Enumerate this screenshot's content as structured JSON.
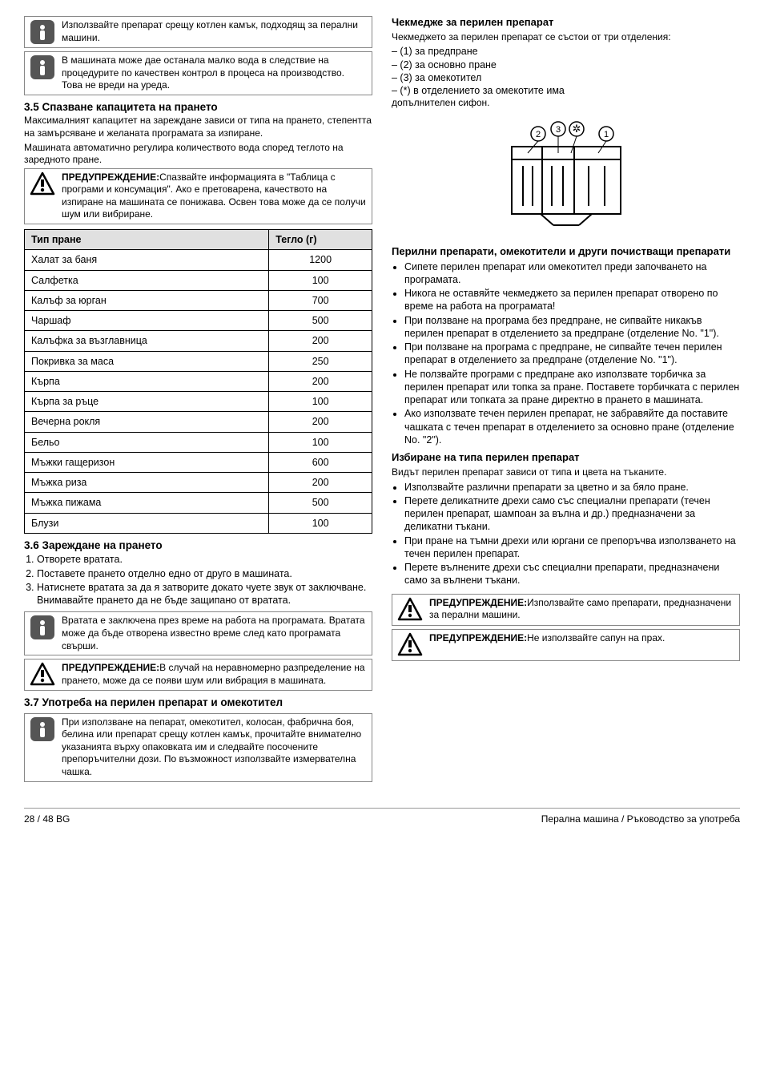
{
  "left": {
    "info1": "Използвайте препарат срещу котлен камък, подходящ за перални машини.",
    "info2": "В машината може дае останала малко вода в следствие на процедурите по качествен контрол в процеса на производство. Това не вреди на уреда.",
    "sec35_title": "3.5 Спазване капацитета на прането",
    "sec35_p1": "Максималният капацитет на зареждане зависи от типа на прането, степентта на замърсяване и желаната програмата за изпиране.",
    "sec35_p2": "Машината автоматично регулира количеството вода според теглото на заредното пране.",
    "warn35_b": "ПРЕДУПРЕЖДЕНИЕ:",
    "warn35": "Спазвайте информацията в \"Таблица с програми и консумация\". Ако е претоварена, качеството на изпиране на машината се понижава. Освен това може да се получи шум или вибриране.",
    "table": {
      "h1": "Тип пране",
      "h2": "Тегло (г)",
      "rows": [
        {
          "t": "Халат за баня",
          "w": "1200"
        },
        {
          "t": "Салфетка",
          "w": "100"
        },
        {
          "t": "Калъф за юрган",
          "w": "700"
        },
        {
          "t": "Чаршаф",
          "w": "500"
        },
        {
          "t": "Калъфка за възглавница",
          "w": "200"
        },
        {
          "t": "Покривка за маса",
          "w": "250"
        },
        {
          "t": "Кърпа",
          "w": "200"
        },
        {
          "t": "Кърпа за ръце",
          "w": "100"
        },
        {
          "t": "Вечерна рокля",
          "w": "200"
        },
        {
          "t": "Бельо",
          "w": "100"
        },
        {
          "t": "Мъжки гащеризон",
          "w": "600"
        },
        {
          "t": "Мъжка риза",
          "w": "200"
        },
        {
          "t": "Мъжка пижама",
          "w": "500"
        },
        {
          "t": "Блузи",
          "w": "100"
        }
      ]
    },
    "sec36_title": "3.6 Зареждане на прането",
    "steps": [
      "Отворете вратата.",
      "Поставете прането отделно едно от друго в машината.",
      "Натиснете вратата за да я затворите докато чуете звук от заключване. Внимавайте прането да не бъде защипано от вратата."
    ],
    "info36": "Вратата е заключена през време на работа на програмата. Вратата може да бъде отворена известно време след като програмата свърши.",
    "warn36_b": "ПРЕДУПРЕЖДЕНИЕ:",
    "warn36": "В случай на неравномерно разпределение на прането, може да се появи шум или вибрация в машината.",
    "sec37_title": "3.7 Употреба на перилен препарат и омекотител",
    "info37": "При използване на пепарат, омекотител, колосан, фабрична боя, белина или препарат срещу котлен камък, прочитайте внимателно указанията върху опаковката им и следвайте посочените препоръчителни дози. По възможност използвайте измервателна чашка."
  },
  "right": {
    "drawer_title": "Чекмедже за перилен препарат",
    "drawer_p": "Чекмеджето за перилен препарат се състои от три отделения:",
    "dash": [
      "– (1) за предпране",
      "– (2) за основно пране",
      "– (3) за омекотител",
      "– (*) в отделението за омекотите има"
    ],
    "dash_tail": "допълнителен сифон.",
    "sec_det_title": "Перилни препарати, омекотители и други почистващи препарати",
    "bul1": [
      "Сипете перилен препарат или омекотител преди започването на програмата.",
      "Никога не оставяйте чекмеджето за перилен препарат отворено по време на работа на програмата!",
      "При ползване на програма без предпране, не сипвайте никакъв перилен препарат в отделението за предпране (отделение No. \"1\").",
      "При ползване на програма с предпране, не сипвайте течен перилен препарат в отделението за предпране (отделение No. \"1\").",
      "Не ползвайте програми с предпране ако използвате торбичка за перилен препарат или топка за пране. Поставете торбичката с перилен препарат или топката за пране директно в прането в машината.",
      "Ако използвате течен перилен препарат, не забравяйте да поставите чашката с течен препарат в отделението за основно пране (отделение No. \"2\")."
    ],
    "sec_type_title": "Избиране на типа перилен препарат",
    "type_p": "Видът перилен препарат зависи от типа и цвета на тъканите.",
    "bul2": [
      "Използвайте различни препарати за цветно и за бяло пране.",
      "Перете деликатните дрехи само със специални препарати (течен перилен препарат, шампоан за вълна и др.) предназначени за деликатни тъкани.",
      "При пране на тъмни дрехи или юргани се препоръчва използването на течен перилен препарат.",
      "Перете вълнените дрехи със специални препарати, предназначени само за вълнени тъкани."
    ],
    "warnA_b": "ПРЕДУПРЕЖДЕНИЕ:",
    "warnA": "Използвайте само препарати, предназначени за перални машини.",
    "warnB_b": "ПРЕДУПРЕЖДЕНИЕ:",
    "warnB": "Не използвайте сапун на прах."
  },
  "footer": {
    "left": "28 / 48   BG",
    "right": "Перална машина / Ръководство за употреба"
  }
}
